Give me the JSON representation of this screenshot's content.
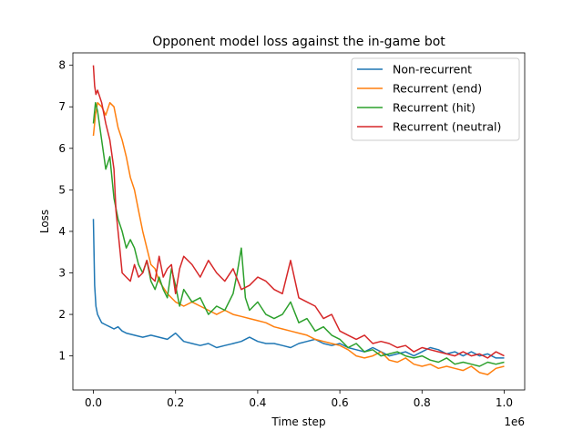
{
  "chart_data": {
    "type": "line",
    "title": "Opponent model loss against the in-game bot",
    "xlabel": "Time step",
    "ylabel": "Loss",
    "x_offset_label": "1e6",
    "xlim": [
      -50000,
      1050000
    ],
    "ylim": [
      0.18,
      8.3
    ],
    "x_ticks": [
      0,
      200000,
      400000,
      600000,
      800000,
      1000000
    ],
    "x_tick_labels": [
      "0.0",
      "0.2",
      "0.4",
      "0.6",
      "0.8",
      "1.0"
    ],
    "y_ticks": [
      1,
      2,
      3,
      4,
      5,
      6,
      7,
      8
    ],
    "y_tick_labels": [
      "1",
      "2",
      "3",
      "4",
      "5",
      "6",
      "7",
      "8"
    ],
    "grid": false,
    "legend_position": "top-right",
    "series": [
      {
        "name": "Non-recurrent",
        "color": "#1f77b4",
        "x": [
          0,
          3000,
          6000,
          10000,
          15000,
          20000,
          30000,
          40000,
          50000,
          60000,
          70000,
          80000,
          100000,
          120000,
          140000,
          160000,
          180000,
          200000,
          220000,
          240000,
          260000,
          280000,
          300000,
          320000,
          340000,
          360000,
          380000,
          400000,
          420000,
          440000,
          460000,
          480000,
          500000,
          520000,
          540000,
          560000,
          580000,
          600000,
          620000,
          640000,
          660000,
          680000,
          700000,
          720000,
          740000,
          760000,
          780000,
          800000,
          820000,
          840000,
          860000,
          880000,
          900000,
          920000,
          940000,
          960000,
          980000,
          1000000
        ],
        "y": [
          4.3,
          2.7,
          2.2,
          2.0,
          1.9,
          1.8,
          1.75,
          1.7,
          1.65,
          1.7,
          1.6,
          1.55,
          1.5,
          1.45,
          1.5,
          1.45,
          1.4,
          1.55,
          1.35,
          1.3,
          1.25,
          1.3,
          1.2,
          1.25,
          1.3,
          1.35,
          1.45,
          1.35,
          1.3,
          1.3,
          1.25,
          1.2,
          1.3,
          1.35,
          1.4,
          1.3,
          1.25,
          1.3,
          1.2,
          1.15,
          1.1,
          1.2,
          1.1,
          1.0,
          1.05,
          1.1,
          1.0,
          1.1,
          1.2,
          1.15,
          1.05,
          1.1,
          1.0,
          1.1,
          1.0,
          1.05,
          0.95,
          0.95
        ]
      },
      {
        "name": "Recurrent (end)",
        "color": "#ff7f0e",
        "x": [
          0,
          5000,
          10000,
          20000,
          30000,
          40000,
          50000,
          60000,
          70000,
          80000,
          90000,
          100000,
          110000,
          120000,
          130000,
          140000,
          150000,
          160000,
          180000,
          200000,
          220000,
          240000,
          260000,
          280000,
          300000,
          320000,
          340000,
          360000,
          380000,
          400000,
          420000,
          440000,
          460000,
          480000,
          500000,
          520000,
          540000,
          560000,
          580000,
          600000,
          620000,
          640000,
          660000,
          680000,
          700000,
          720000,
          740000,
          760000,
          780000,
          800000,
          820000,
          840000,
          860000,
          880000,
          900000,
          920000,
          940000,
          960000,
          980000,
          1000000
        ],
        "y": [
          6.3,
          6.8,
          7.1,
          7.0,
          6.8,
          7.1,
          7.0,
          6.5,
          6.2,
          5.8,
          5.3,
          5.0,
          4.5,
          4.0,
          3.6,
          3.2,
          3.1,
          2.8,
          2.5,
          2.3,
          2.2,
          2.3,
          2.2,
          2.1,
          2.0,
          2.1,
          2.0,
          1.95,
          1.9,
          1.85,
          1.8,
          1.7,
          1.65,
          1.6,
          1.55,
          1.5,
          1.4,
          1.35,
          1.3,
          1.25,
          1.15,
          1.0,
          0.95,
          1.0,
          1.1,
          0.9,
          0.85,
          0.95,
          0.8,
          0.75,
          0.8,
          0.7,
          0.75,
          0.7,
          0.65,
          0.75,
          0.6,
          0.55,
          0.7,
          0.75
        ]
      },
      {
        "name": "Recurrent (hit)",
        "color": "#2ca02c",
        "x": [
          0,
          5000,
          10000,
          20000,
          30000,
          40000,
          50000,
          60000,
          70000,
          80000,
          90000,
          100000,
          110000,
          120000,
          130000,
          140000,
          150000,
          160000,
          170000,
          180000,
          190000,
          200000,
          210000,
          220000,
          240000,
          260000,
          280000,
          300000,
          320000,
          340000,
          350000,
          360000,
          370000,
          380000,
          400000,
          420000,
          440000,
          460000,
          480000,
          500000,
          520000,
          540000,
          560000,
          580000,
          600000,
          620000,
          640000,
          660000,
          680000,
          700000,
          720000,
          740000,
          760000,
          780000,
          800000,
          820000,
          840000,
          860000,
          880000,
          900000,
          920000,
          940000,
          960000,
          980000,
          1000000
        ],
        "y": [
          6.6,
          7.1,
          6.9,
          6.2,
          5.5,
          5.8,
          4.8,
          4.3,
          4.0,
          3.6,
          3.8,
          3.6,
          3.2,
          3.0,
          3.3,
          2.8,
          2.6,
          2.9,
          2.6,
          2.4,
          3.1,
          2.7,
          2.2,
          2.6,
          2.3,
          2.4,
          2.0,
          2.2,
          2.1,
          2.5,
          3.0,
          3.6,
          2.4,
          2.1,
          2.3,
          2.0,
          1.9,
          2.0,
          2.3,
          1.8,
          1.9,
          1.6,
          1.7,
          1.5,
          1.4,
          1.2,
          1.3,
          1.1,
          1.15,
          1.0,
          1.05,
          1.1,
          1.0,
          0.95,
          1.0,
          0.9,
          0.85,
          0.95,
          0.8,
          0.85,
          0.8,
          0.75,
          0.85,
          0.8,
          0.85
        ]
      },
      {
        "name": "Recurrent (neutral)",
        "color": "#d62728",
        "x": [
          0,
          3000,
          6000,
          10000,
          20000,
          30000,
          40000,
          50000,
          55000,
          60000,
          65000,
          70000,
          80000,
          90000,
          100000,
          110000,
          120000,
          130000,
          140000,
          150000,
          160000,
          170000,
          180000,
          190000,
          200000,
          210000,
          220000,
          240000,
          260000,
          280000,
          300000,
          320000,
          340000,
          360000,
          380000,
          400000,
          420000,
          440000,
          460000,
          480000,
          500000,
          520000,
          540000,
          560000,
          580000,
          600000,
          620000,
          640000,
          660000,
          680000,
          700000,
          720000,
          740000,
          760000,
          780000,
          800000,
          820000,
          840000,
          860000,
          880000,
          900000,
          920000,
          940000,
          960000,
          980000,
          1000000
        ],
        "y": [
          8.0,
          7.5,
          7.3,
          7.4,
          7.1,
          6.6,
          6.2,
          5.5,
          4.5,
          4.0,
          3.5,
          3.0,
          2.9,
          2.8,
          3.2,
          2.9,
          3.0,
          3.3,
          2.9,
          2.8,
          3.4,
          2.9,
          3.1,
          3.2,
          2.5,
          3.1,
          3.4,
          3.2,
          2.9,
          3.3,
          3.0,
          2.8,
          3.1,
          2.6,
          2.7,
          2.9,
          2.8,
          2.6,
          2.5,
          3.3,
          2.4,
          2.3,
          2.2,
          1.9,
          2.0,
          1.6,
          1.5,
          1.4,
          1.5,
          1.3,
          1.35,
          1.3,
          1.2,
          1.25,
          1.1,
          1.2,
          1.15,
          1.1,
          1.05,
          1.0,
          1.1,
          1.0,
          1.05,
          0.95,
          1.1,
          1.0
        ]
      }
    ]
  }
}
